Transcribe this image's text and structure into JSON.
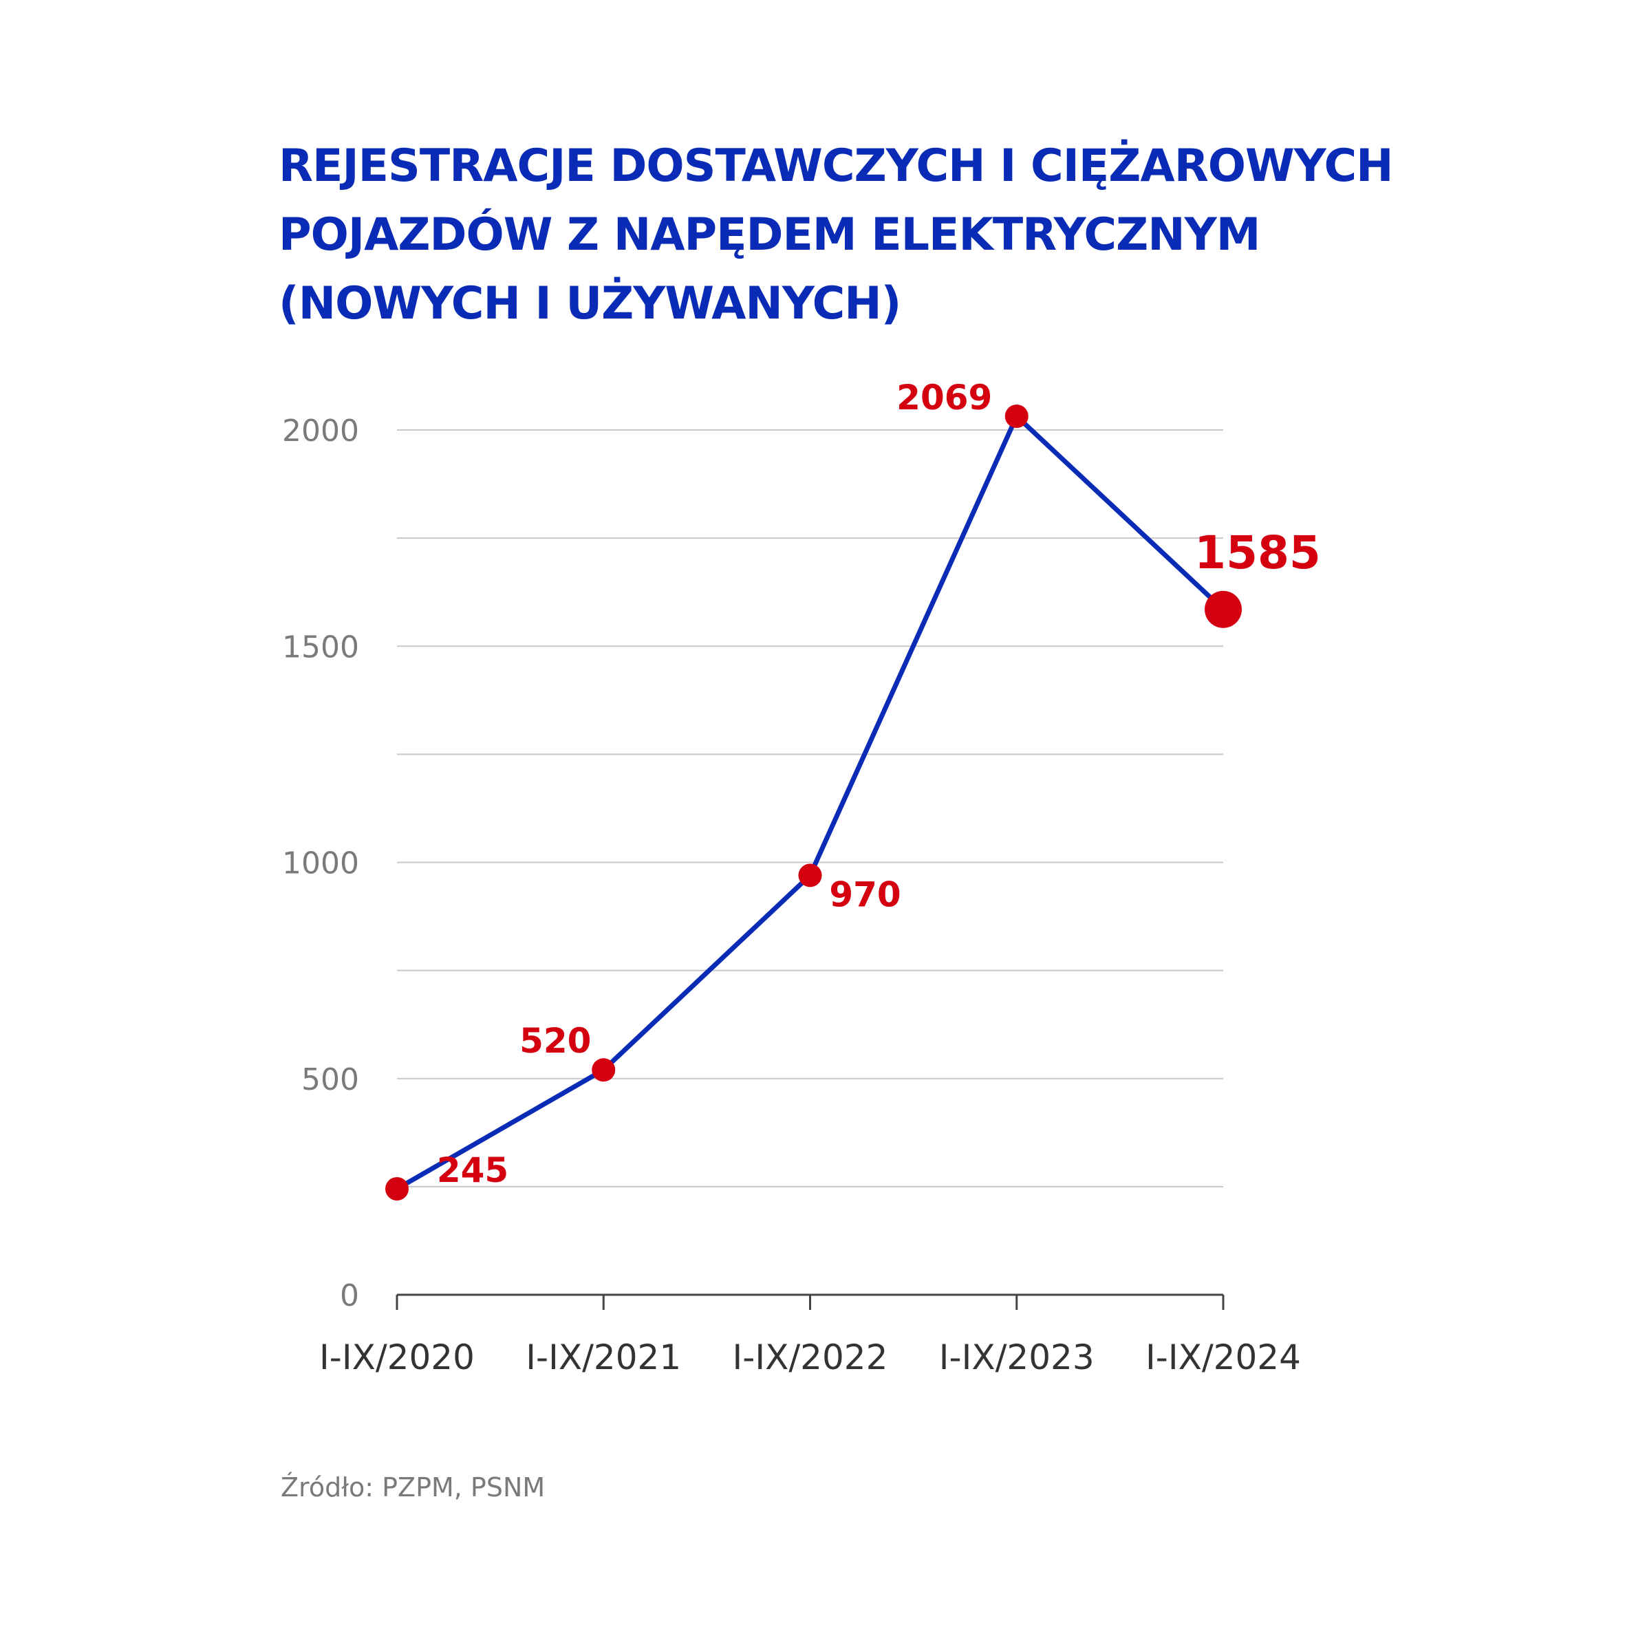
{
  "chart_data": {
    "type": "line",
    "title_lines": [
      "REJESTRACJE DOSTAWCZYCH I CIĘŻAROWYCH",
      "POJAZDÓW Z NAPĘDEM ELEKTRYCZNYM",
      "(NOWYCH I UŻYWANYCH)"
    ],
    "categories": [
      "I-IX/2020",
      "I-IX/2021",
      "I-IX/2022",
      "I-IX/2023",
      "I-IX/2024"
    ],
    "series": [
      {
        "values": [
          245,
          520,
          970,
          2069,
          1585
        ]
      }
    ],
    "ylim": [
      0,
      2000
    ],
    "yticks": [
      0,
      500,
      1000,
      1500,
      2000
    ],
    "ytick_labels": [
      "0",
      "500",
      "1000",
      "1500",
      "2000"
    ],
    "grid": true,
    "source": "Źródło: PZPM, PSNM",
    "colors": {
      "title": "#0a2bb6",
      "line": "#0a2bb6",
      "marker": "#d4000f",
      "label": "#d4000f",
      "grid": "#c8c8c8",
      "axis": "#444444",
      "tick_text": "#7a7a7a",
      "category_text": "#333333"
    }
  }
}
